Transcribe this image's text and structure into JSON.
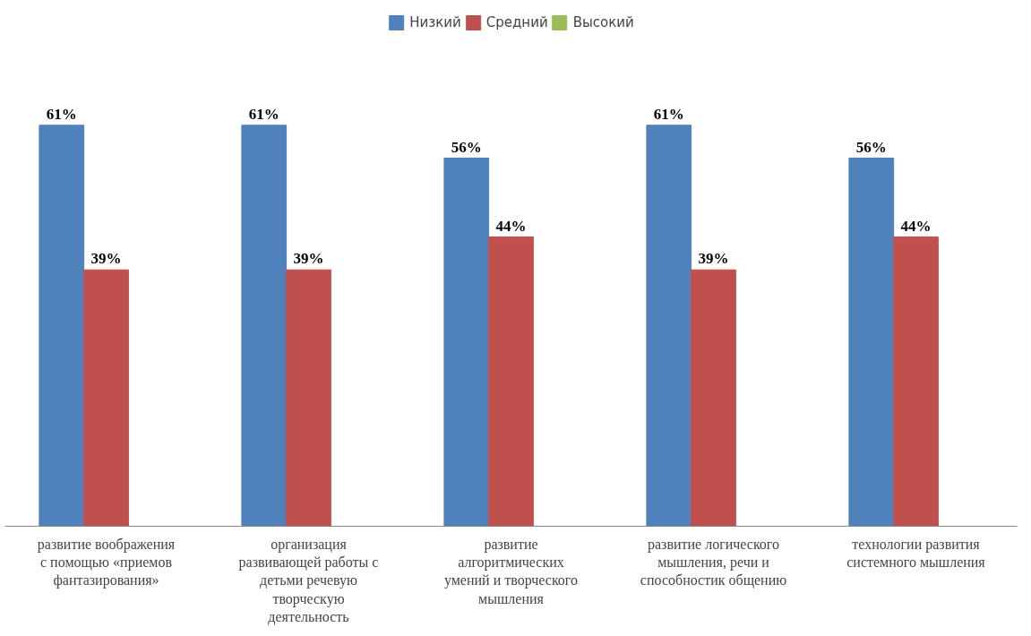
{
  "chart_data": {
    "type": "bar",
    "categories": [
      "развитие воображения с помощью «приемов фантазирования»",
      "организация развивающей работы с детьми речевую творческую деятельность",
      "развитие алгоритмических умений и творческого мышления",
      "развитие логического мышления, речи и способностик общению",
      "технологии развития системного мышления"
    ],
    "series": [
      {
        "name": "Низкий",
        "color": "#4f81bd",
        "values": [
          61,
          61,
          56,
          61,
          56
        ],
        "value_labels": [
          "61%",
          "61%",
          "56%",
          "61%",
          "56%"
        ]
      },
      {
        "name": "Средний",
        "color": "#c0504d",
        "values": [
          39,
          39,
          44,
          39,
          44
        ],
        "value_labels": [
          "39%",
          "39%",
          "44%",
          "39%",
          "44%"
        ]
      },
      {
        "name": "Высокий",
        "color": "#9bbb59",
        "values": [
          null,
          null,
          null,
          null,
          null
        ]
      }
    ],
    "legend": "top",
    "grid": false
  }
}
